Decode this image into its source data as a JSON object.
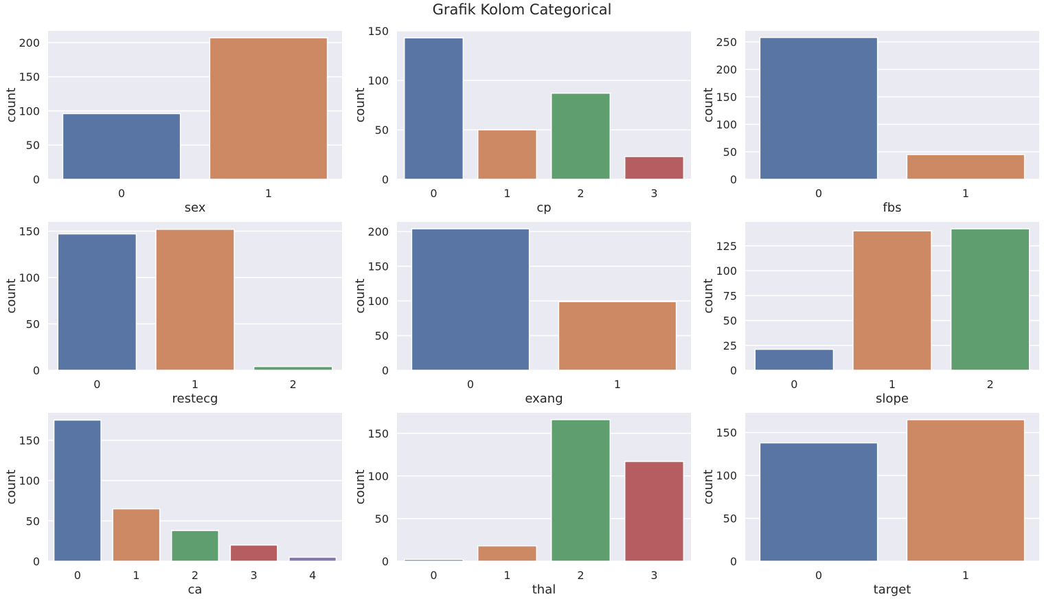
{
  "title": "Grafik Kolom Categorical",
  "palette": [
    "#5875a4",
    "#cc8963",
    "#5f9e6e",
    "#b55d60",
    "#857aab"
  ],
  "chart_data": [
    {
      "type": "bar",
      "xlabel": "sex",
      "ylabel": "count",
      "categories": [
        "0",
        "1"
      ],
      "values": [
        96,
        207
      ],
      "ylim": [
        0,
        217
      ],
      "yticks": [
        0,
        50,
        100,
        150,
        200
      ],
      "grid": true
    },
    {
      "type": "bar",
      "xlabel": "cp",
      "ylabel": "count",
      "categories": [
        "0",
        "1",
        "2",
        "3"
      ],
      "values": [
        143,
        50,
        87,
        23
      ],
      "ylim": [
        0,
        150
      ],
      "yticks": [
        0,
        50,
        100,
        150
      ],
      "grid": true
    },
    {
      "type": "bar",
      "xlabel": "fbs",
      "ylabel": "count",
      "categories": [
        "0",
        "1"
      ],
      "values": [
        258,
        45
      ],
      "ylim": [
        0,
        270
      ],
      "yticks": [
        0,
        50,
        100,
        150,
        200,
        250
      ],
      "grid": true
    },
    {
      "type": "bar",
      "xlabel": "restecg",
      "ylabel": "count",
      "categories": [
        "0",
        "1",
        "2"
      ],
      "values": [
        147,
        152,
        4
      ],
      "ylim": [
        0,
        160
      ],
      "yticks": [
        0,
        50,
        100,
        150
      ],
      "grid": true
    },
    {
      "type": "bar",
      "xlabel": "exang",
      "ylabel": "count",
      "categories": [
        "0",
        "1"
      ],
      "values": [
        204,
        99
      ],
      "ylim": [
        0,
        214
      ],
      "yticks": [
        0,
        50,
        100,
        150,
        200
      ],
      "grid": true
    },
    {
      "type": "bar",
      "xlabel": "slope",
      "ylabel": "count",
      "categories": [
        "0",
        "1",
        "2"
      ],
      "values": [
        21,
        140,
        142
      ],
      "ylim": [
        0,
        149
      ],
      "yticks": [
        0,
        25,
        50,
        75,
        100,
        125
      ],
      "grid": true
    },
    {
      "type": "bar",
      "xlabel": "ca",
      "ylabel": "count",
      "categories": [
        "0",
        "1",
        "2",
        "3",
        "4"
      ],
      "values": [
        175,
        65,
        38,
        20,
        5
      ],
      "ylim": [
        0,
        184
      ],
      "yticks": [
        0,
        50,
        100,
        150
      ],
      "grid": true
    },
    {
      "type": "bar",
      "xlabel": "thal",
      "ylabel": "count",
      "categories": [
        "0",
        "1",
        "2",
        "3"
      ],
      "values": [
        2,
        18,
        166,
        117
      ],
      "ylim": [
        0,
        174
      ],
      "yticks": [
        0,
        50,
        100,
        150
      ],
      "grid": true
    },
    {
      "type": "bar",
      "xlabel": "target",
      "ylabel": "count",
      "categories": [
        "0",
        "1"
      ],
      "values": [
        138,
        165
      ],
      "ylim": [
        0,
        173
      ],
      "yticks": [
        0,
        50,
        100,
        150
      ],
      "grid": true
    }
  ]
}
